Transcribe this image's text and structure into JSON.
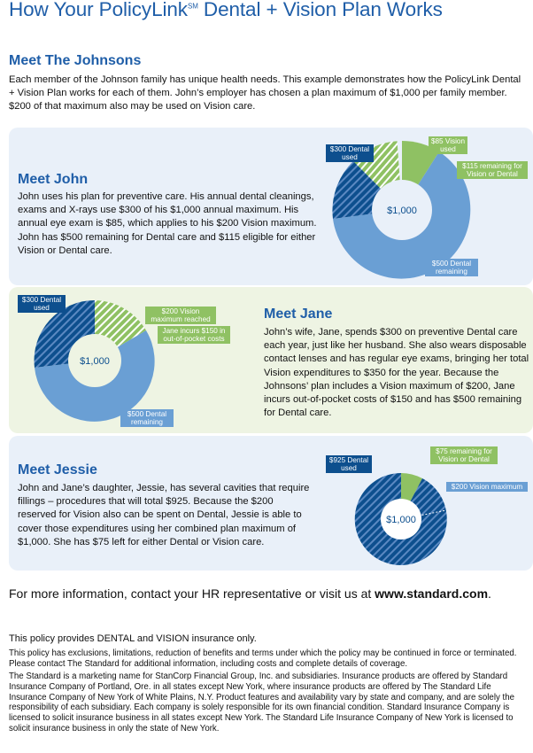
{
  "title": {
    "prefix": "How Your PolicyLink",
    "sup": "SM",
    "suffix": " Dental + Vision Plan Works"
  },
  "intro": {
    "heading": "Meet The Johnsons",
    "text": "Each member of the Johnson family has unique health needs. This example demonstrates how the PolicyLink Dental + Vision Plan works for each of them. John’s employer has chosen a plan maximum of $1,000 per family member. $200 of that maximum also may be used on Vision care."
  },
  "john": {
    "heading": "Meet John",
    "text": "John uses his plan for preventive care. His annual dental cleanings, exams and X-rays use $300 of his $1,000 annual maximum. His annual eye exam is $85, which applies to his $200 Vision maximum. John has $500 remaining for Dental care and $115 eligible for either Vision or Dental care.",
    "center_label": "$1,000",
    "labels": {
      "dental_used": "$300 Dental used",
      "vision_used": "$85 Vision used",
      "remaining_either": "$115 remaining for Vision or Dental",
      "dental_remaining": "$500 Dental remaining"
    }
  },
  "jane": {
    "heading": "Meet Jane",
    "text": "John’s wife, Jane, spends $300 on preventive Dental care each year, just like her husband. She also wears disposable contact lenses and has regular eye exams, bringing her total Vision expenditures to $350 for the year. Because the Johnsons’ plan includes a Vision maximum of $200, Jane incurs out-of-pocket costs of $150 and has $500 remaining for Dental care.",
    "center_label": "$1,000",
    "labels": {
      "dental_used": "$300 Dental used",
      "vision_max": "$200 Vision maximum reached",
      "out_of_pocket": "Jane incurs $150 in out-of-pocket costs",
      "dental_remaining": "$500 Dental remaining"
    }
  },
  "jessie": {
    "heading": "Meet Jessie",
    "text": "John and Jane’s daughter, Jessie, has several cavities that require fillings – procedures that will total $925. Because the $200 reserved for Vision also can be spent on Dental, Jessie is able to cover those expenditures using her combined plan maximum of $1,000. She has $75 left for either Dental or Vision care.",
    "center_label": "$1,000",
    "labels": {
      "dental_used": "$925 Dental used",
      "remaining_either": "$75 remaining for Vision or Dental",
      "vision_max": "$200 Vision maximum"
    }
  },
  "contact": {
    "text": "For more information, contact your HR representative or visit us at ",
    "link": "www.standard.com",
    "end": "."
  },
  "footer": {
    "line1": "This policy provides DENTAL and VISION insurance only.",
    "line2": "This policy has exclusions, limitations, reduction of benefits and terms under which the policy may be continued in force or terminated. Please contact The Standard for additional information, including costs and complete details of coverage.",
    "line3": "The Standard is a marketing name for StanCorp Financial Group, Inc. and subsidiaries. Insurance products are offered by Standard Insurance Company of Portland, Ore. in all states except New York, where insurance products are offered by The Standard Life Insurance Company of New York of White Plains, N.Y. Product features and availability vary by state and company, and are solely the responsibility of each subsidiary. Each company is solely responsible for its own financial condition. Standard Insurance Company is licensed to solicit insurance business in all states except New York. The Standard Life Insurance Company of New York is licensed to solicit insurance business in only the state of New York."
  },
  "colors": {
    "dark_blue": "#0d4f8e",
    "light_blue": "#6a9fd4",
    "green": "#8fc163",
    "title_blue": "#1f5ea8"
  }
}
